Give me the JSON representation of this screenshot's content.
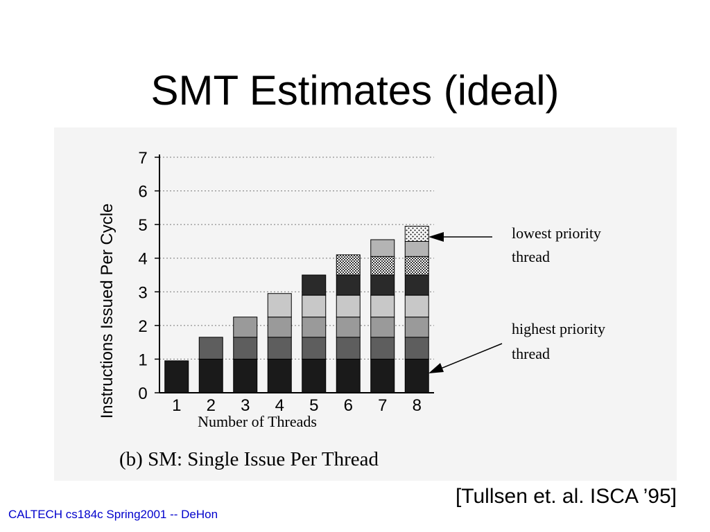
{
  "slide": {
    "title": "SMT Estimates (ideal)",
    "citation": "[Tullsen et. al. ISCA ’95]",
    "footer": "CALTECH cs184c Spring2001 -- DeHon"
  },
  "chart_data": {
    "type": "bar",
    "stacked": true,
    "title": "(b)  SM: Single Issue Per Thread",
    "xlabel": "Number of Threads",
    "ylabel": "Instructions  Issued  Per  Cycle",
    "categories": [
      "1",
      "2",
      "3",
      "4",
      "5",
      "6",
      "7",
      "8"
    ],
    "yticks": [
      "0",
      "1",
      "2",
      "3",
      "4",
      "5",
      "6",
      "7"
    ],
    "ylim": [
      0,
      7
    ],
    "grid": "horizontal dotted",
    "segment_values": [
      [
        0.95
      ],
      [
        1.0,
        0.65
      ],
      [
        1.0,
        0.65,
        0.6
      ],
      [
        1.0,
        0.65,
        0.6,
        0.7
      ],
      [
        1.0,
        0.65,
        0.6,
        0.65,
        0.6
      ],
      [
        1.0,
        0.65,
        0.6,
        0.65,
        0.6,
        0.6
      ],
      [
        1.0,
        0.65,
        0.6,
        0.65,
        0.6,
        0.55,
        0.5
      ],
      [
        1.0,
        0.65,
        0.6,
        0.65,
        0.6,
        0.55,
        0.45,
        0.45
      ]
    ],
    "segment_colors": [
      "#1a1a1a",
      "#5e5e5e",
      "#9a9a9a",
      "#c8c8c8",
      "#2a2a2a",
      "#6e6e6e",
      "#b4b4b4",
      "#dedede"
    ],
    "annotations": [
      {
        "text_lines": [
          "lowest  priority",
          "thread"
        ],
        "points_to": "top segment of bar 8"
      },
      {
        "text_lines": [
          "highest  priority",
          "thread"
        ],
        "points_to": "bottom segment of bar 8"
      }
    ]
  }
}
